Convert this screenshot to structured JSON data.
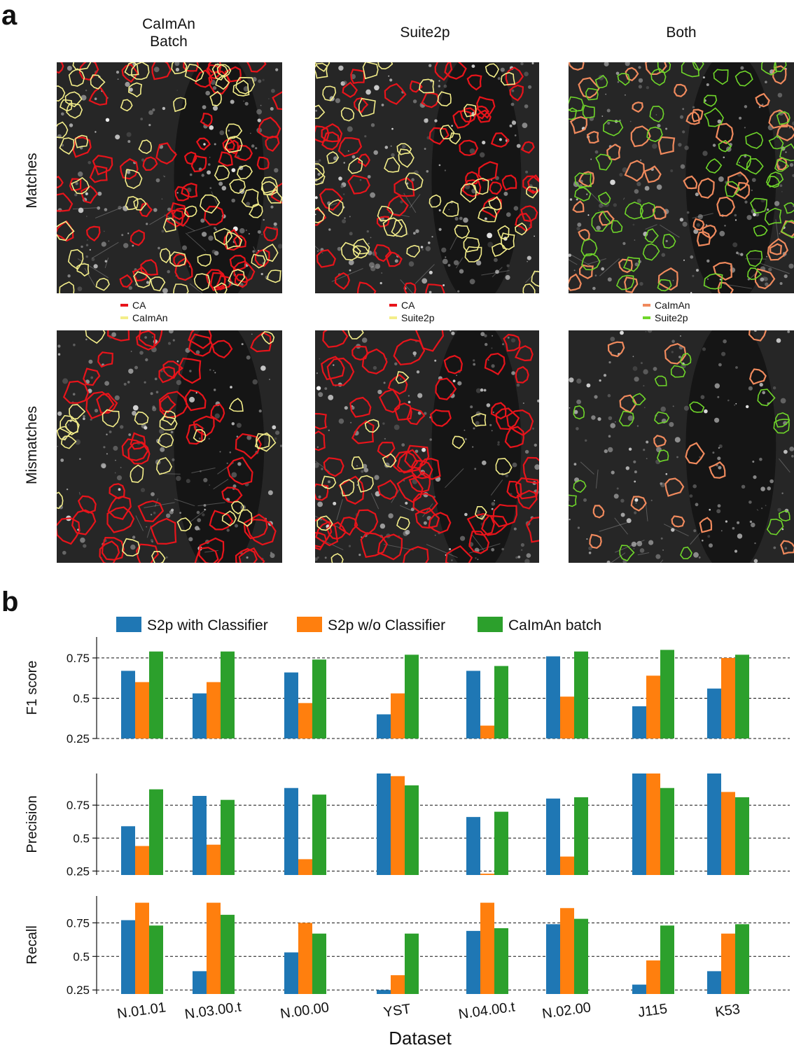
{
  "panel_a": {
    "letter": "a",
    "columns": [
      "CaImAn\nBatch",
      "Suite2p",
      "Both"
    ],
    "rows": [
      "Matches",
      "Mismatches"
    ],
    "legends": [
      [
        {
          "label": "CA",
          "color": "#e8141b"
        },
        {
          "label": "CaImAn",
          "color": "#f4ee8a"
        }
      ],
      [
        {
          "label": "CA",
          "color": "#e8141b"
        },
        {
          "label": "Suite2p",
          "color": "#f4ee8a"
        }
      ],
      [
        {
          "label": "CaImAn",
          "color": "#f08a5d"
        },
        {
          "label": "Suite2p",
          "color": "#6fd62a"
        }
      ]
    ]
  },
  "panel_b": {
    "letter": "b",
    "legend": [
      "S2p with Classifier",
      "S2p w/o Classifier",
      "CaImAn batch"
    ],
    "colors": [
      "#1f77b4",
      "#ff7f0e",
      "#2ca02c"
    ],
    "xlabel": "Dataset"
  },
  "chart_data": [
    {
      "type": "bar",
      "ylabel": "F1 score",
      "yticks": [
        "0.25",
        "0.5",
        "0.75"
      ],
      "ylim": [
        0.25,
        0.88
      ],
      "grid": "dashed horizontal",
      "categories": [
        "N.01.01",
        "N.03.00.t",
        "N.00.00",
        "YST",
        "N.04.00.t",
        "N.02.00",
        "J115",
        "K53"
      ],
      "series": [
        {
          "name": "S2p with Classifier",
          "values": [
            0.67,
            0.53,
            0.66,
            0.4,
            0.67,
            0.76,
            0.45,
            0.56
          ]
        },
        {
          "name": "S2p w/o Classifier",
          "values": [
            0.6,
            0.6,
            0.47,
            0.53,
            0.33,
            0.51,
            0.64,
            0.75
          ]
        },
        {
          "name": "CaImAn batch",
          "values": [
            0.79,
            0.79,
            0.74,
            0.77,
            0.7,
            0.79,
            0.8,
            0.77
          ]
        }
      ]
    },
    {
      "type": "bar",
      "ylabel": "Precision",
      "yticks": [
        "0.25",
        "0.5",
        "0.75"
      ],
      "ylim": [
        0.22,
        0.99
      ],
      "grid": "dashed horizontal",
      "categories": [
        "N.01.01",
        "N.03.00.t",
        "N.00.00",
        "YST",
        "N.04.00.t",
        "N.02.00",
        "J115",
        "K53"
      ],
      "series": [
        {
          "name": "S2p with Classifier",
          "values": [
            0.59,
            0.82,
            0.88,
            0.99,
            0.66,
            0.8,
            0.99,
            0.99
          ]
        },
        {
          "name": "S2p w/o Classifier",
          "values": [
            0.44,
            0.45,
            0.34,
            0.97,
            0.23,
            0.36,
            0.99,
            0.85
          ]
        },
        {
          "name": "CaImAn batch",
          "values": [
            0.87,
            0.79,
            0.83,
            0.9,
            0.7,
            0.81,
            0.88,
            0.81
          ]
        }
      ]
    },
    {
      "type": "bar",
      "ylabel": "Recall",
      "yticks": [
        "0.25",
        "0.5",
        "0.75"
      ],
      "ylim": [
        0.22,
        0.95
      ],
      "grid": "dashed horizontal",
      "categories": [
        "N.01.01",
        "N.03.00.t",
        "N.00.00",
        "YST",
        "N.04.00.t",
        "N.02.00",
        "J115",
        "K53"
      ],
      "series": [
        {
          "name": "S2p with Classifier",
          "values": [
            0.77,
            0.39,
            0.53,
            0.25,
            0.69,
            0.74,
            0.29,
            0.39
          ]
        },
        {
          "name": "S2p w/o Classifier",
          "values": [
            0.9,
            0.9,
            0.75,
            0.36,
            0.9,
            0.86,
            0.47,
            0.67
          ]
        },
        {
          "name": "CaImAn batch",
          "values": [
            0.73,
            0.81,
            0.67,
            0.67,
            0.71,
            0.78,
            0.73,
            0.74
          ]
        }
      ]
    }
  ]
}
